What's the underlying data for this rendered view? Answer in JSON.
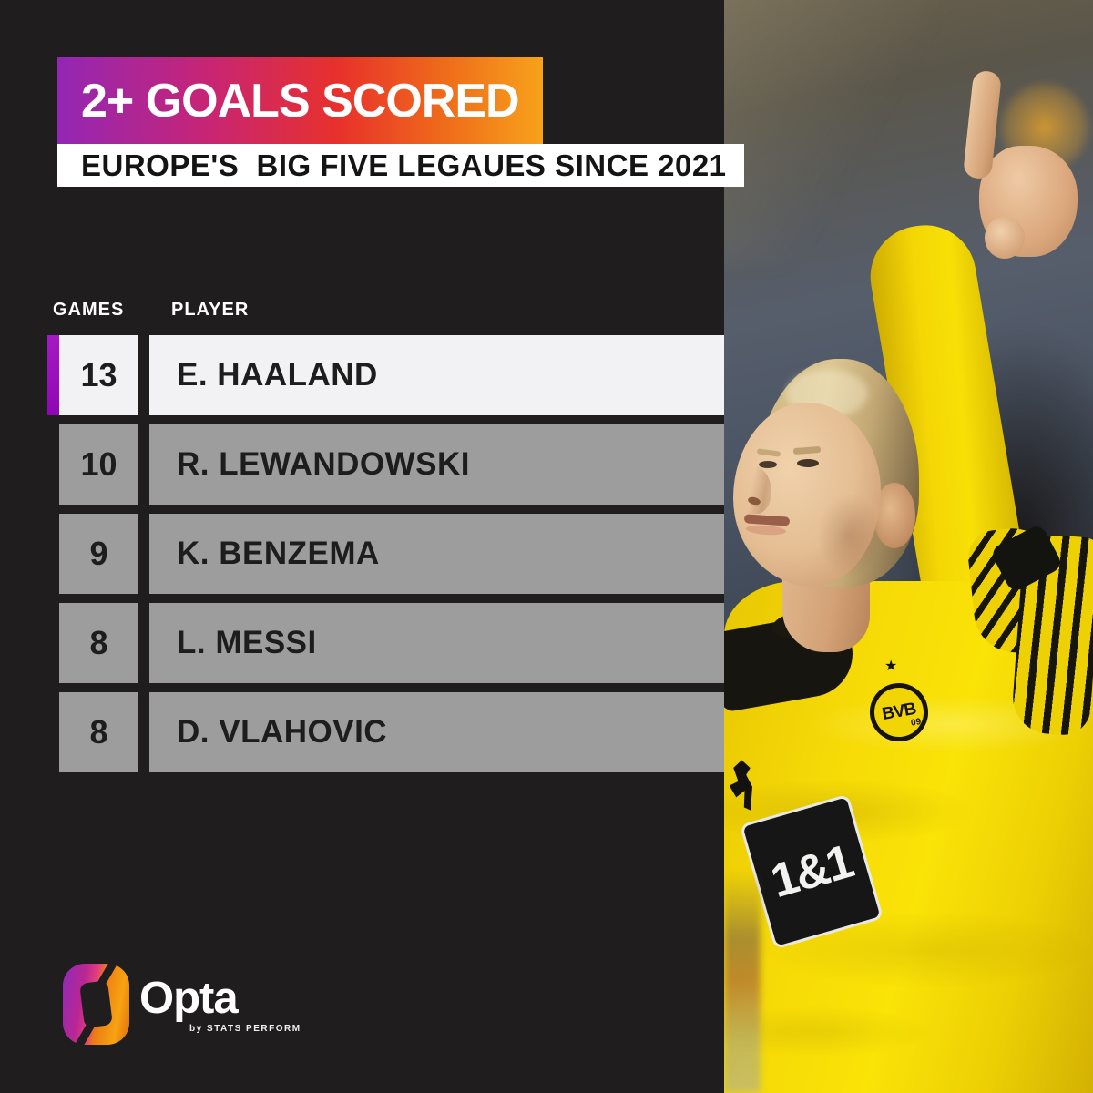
{
  "header": {
    "title": "2+ GOALS SCORED",
    "subtitle": "EUROPE'S  BIG FIVE LEGAUES SINCE 2021"
  },
  "table": {
    "games_header": "GAMES",
    "player_header": "PLAYER",
    "rows": [
      {
        "games": "13",
        "player": "E. HAALAND",
        "highlight": true
      },
      {
        "games": "10",
        "player": "R. LEWANDOWSKI",
        "highlight": false
      },
      {
        "games": "9",
        "player": "K. BENZEMA",
        "highlight": false
      },
      {
        "games": "8",
        "player": "L. MESSI",
        "highlight": false
      },
      {
        "games": "8",
        "player": "D. VLAHOVIC",
        "highlight": false
      }
    ]
  },
  "photo": {
    "badge": "BVB",
    "badge_number": "09",
    "sponsor": "1&1",
    "star_icon": "★"
  },
  "branding": {
    "name": "Opta",
    "tagline": "by STATS PERFORM"
  },
  "colors": {
    "background": "#1f1d1d",
    "accent_gradient_start": "#9326b5",
    "accent_gradient_mid": "#e8312b",
    "accent_gradient_end": "#f7a21b",
    "highlight_row_bg": "#f2f2f4",
    "highlight_stripe": "#9a0fbe",
    "row_gray": "#9d9d9d",
    "jersey_yellow": "#f6da07",
    "banner_text": "#ffffff",
    "sub_banner_bg": "#ffffff",
    "sub_banner_text": "#141414"
  },
  "chart_data": {
    "type": "table",
    "title": "2+ GOALS SCORED",
    "subtitle": "EUROPE'S BIG FIVE LEGAUES SINCE 2021",
    "columns": [
      "GAMES",
      "PLAYER"
    ],
    "rows": [
      [
        13,
        "E. HAALAND"
      ],
      [
        10,
        "R. LEWANDOWSKI"
      ],
      [
        9,
        "K. BENZEMA"
      ],
      [
        8,
        "L. MESSI"
      ],
      [
        8,
        "D. VLAHOVIC"
      ]
    ],
    "highlighted_row": "E. HAALAND"
  }
}
